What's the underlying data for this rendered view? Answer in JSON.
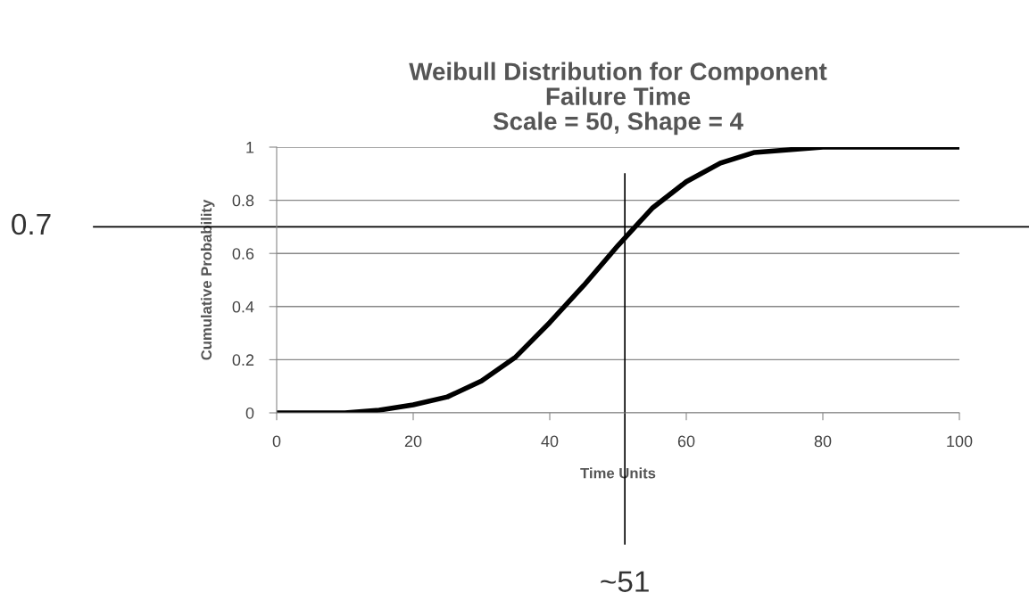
{
  "chart_data": {
    "type": "line",
    "title": "Weibull Distribution for Component\nFailure Time\nScale = 50, Shape = 4",
    "xlabel": "Time Units",
    "ylabel": "Cumulative Probability",
    "x": [
      0,
      5,
      10,
      15,
      20,
      25,
      30,
      35,
      40,
      45,
      50,
      55,
      60,
      65,
      70,
      75,
      80,
      85,
      90,
      95,
      100
    ],
    "series": [
      {
        "color": "#000000",
        "values": [
          0,
          0,
          0,
          0.01,
          0.03,
          0.06,
          0.12,
          0.21,
          0.34,
          0.48,
          0.63,
          0.77,
          0.87,
          0.94,
          0.98,
          0.99,
          1,
          1,
          1,
          1,
          1
        ]
      }
    ],
    "xlim": [
      0,
      100
    ],
    "ylim": [
      0,
      1
    ],
    "xticks": [
      0,
      20,
      40,
      60,
      80,
      100
    ],
    "yticks": [
      0,
      0.2,
      0.4,
      0.6,
      0.8,
      1
    ],
    "grid": "y",
    "legend": false,
    "marker": "none",
    "line_style": "solid",
    "ref_lines": [
      {
        "axis": "y",
        "value": 0.7,
        "label": "0.7",
        "color": "#000000"
      },
      {
        "axis": "x",
        "value": 51,
        "label": "~51",
        "color": "#000000"
      }
    ]
  }
}
